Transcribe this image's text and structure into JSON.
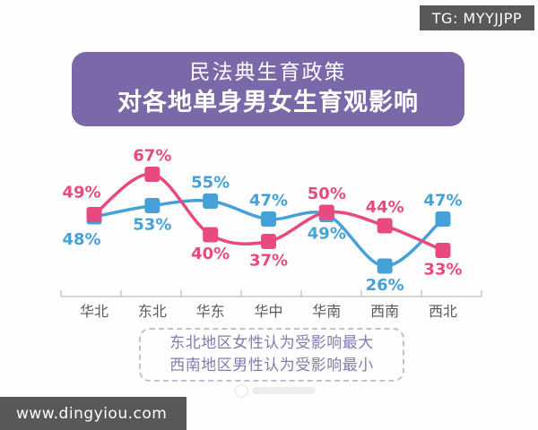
{
  "page": {
    "background": "#ffffff"
  },
  "badges": {
    "top_right": "TG: MYYJJPP",
    "bottom_left": "www.dingyiou.com",
    "bg_color": "#585858"
  },
  "header": {
    "title_line1": "民法典生育政策",
    "title_line2": "对各地单身男女生育观影响",
    "bg_color": "#7a68a8",
    "text_color": "#ffffff"
  },
  "chart_data": {
    "type": "line",
    "title": "民法典生育政策对各地单身男女生育观影响",
    "categories": [
      "华北",
      "东北",
      "华东",
      "华中",
      "华南",
      "西南",
      "西北"
    ],
    "series": [
      {
        "name": "女性",
        "color": "#e8497f",
        "values": [
          49,
          67,
          40,
          37,
          50,
          44,
          33
        ]
      },
      {
        "name": "男性",
        "color": "#45a1d7",
        "values": [
          48,
          53,
          55,
          47,
          49,
          26,
          47
        ]
      }
    ],
    "unit": "%",
    "ylim": [
      20,
      75
    ],
    "grid": false,
    "legend_position": "none",
    "marker": "square",
    "data_labels": true,
    "axis_color": "#c9c9c9",
    "category_label_color": "#5a5a5a"
  },
  "footnote": {
    "line1": "东北地区女性认为受影响最大",
    "line2": "西南地区男性认为受影响最小"
  }
}
